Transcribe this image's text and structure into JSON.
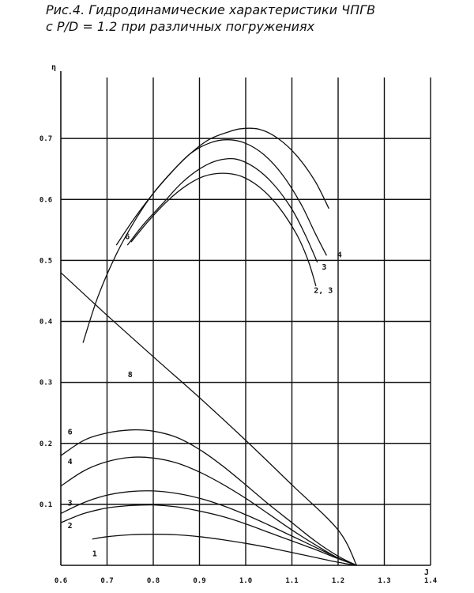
{
  "figure": {
    "caption_line1": "Рис.4. Гидродинамические характеристики ЧПГВ",
    "caption_line2": "с P/D = 1.2 при различных погружениях"
  },
  "chart_data": {
    "type": "line",
    "title": "Рис.4. Гидродинамические характеристики ЧПГВ с P/D = 1.2 при различных погружениях",
    "xlabel": "J",
    "ylabel": "η",
    "xlim": [
      0.6,
      1.4
    ],
    "ylim": [
      0.0,
      0.8
    ],
    "grid": true,
    "x_ticks": [
      "0.6",
      "0.7",
      "0.8",
      "0.9",
      "1.0",
      "1.1",
      "1.2",
      "1.3",
      "1.4"
    ],
    "x_tick_values": [
      0.6,
      0.7,
      0.8,
      0.9,
      1.0,
      1.1,
      1.2,
      1.3,
      1.4
    ],
    "y_ticks": [
      "0.1",
      "0.2",
      "0.3",
      "0.4",
      "0.5",
      "0.6",
      "0.7"
    ],
    "y_tick_values": [
      0.1,
      0.2,
      0.3,
      0.4,
      0.5,
      0.6,
      0.7
    ],
    "series": [
      {
        "name": "6",
        "group": "eta",
        "label_at": [
          0.744,
          0.54
        ],
        "points": [
          [
            0.648,
            0.365
          ],
          [
            0.68,
            0.44
          ],
          [
            0.72,
            0.51
          ],
          [
            0.76,
            0.565
          ],
          [
            0.8,
            0.61
          ],
          [
            0.84,
            0.645
          ],
          [
            0.88,
            0.675
          ],
          [
            0.92,
            0.698
          ],
          [
            0.96,
            0.71
          ],
          [
            0.99,
            0.716
          ],
          [
            1.03,
            0.715
          ],
          [
            1.07,
            0.7
          ],
          [
            1.11,
            0.672
          ],
          [
            1.15,
            0.63
          ],
          [
            1.18,
            0.585
          ]
        ]
      },
      {
        "name": "4",
        "group": "eta",
        "label_at": [
          1.203,
          0.51
        ],
        "points": [
          [
            0.72,
            0.525
          ],
          [
            0.76,
            0.57
          ],
          [
            0.8,
            0.61
          ],
          [
            0.84,
            0.645
          ],
          [
            0.88,
            0.675
          ],
          [
            0.92,
            0.692
          ],
          [
            0.96,
            0.698
          ],
          [
            1.0,
            0.692
          ],
          [
            1.04,
            0.673
          ],
          [
            1.08,
            0.64
          ],
          [
            1.12,
            0.592
          ],
          [
            1.15,
            0.545
          ],
          [
            1.175,
            0.508
          ]
        ]
      },
      {
        "name": "3",
        "group": "eta",
        "label_at": [
          1.17,
          0.49
        ],
        "points": [
          [
            0.744,
            0.525
          ],
          [
            0.78,
            0.56
          ],
          [
            0.82,
            0.593
          ],
          [
            0.86,
            0.626
          ],
          [
            0.9,
            0.65
          ],
          [
            0.94,
            0.664
          ],
          [
            0.98,
            0.666
          ],
          [
            1.02,
            0.652
          ],
          [
            1.06,
            0.625
          ],
          [
            1.1,
            0.584
          ],
          [
            1.13,
            0.54
          ],
          [
            1.155,
            0.497
          ]
        ]
      },
      {
        "name": "2, 3",
        "group": "eta",
        "label_at": [
          1.168,
          0.452
        ],
        "points": [
          [
            0.752,
            0.53
          ],
          [
            0.79,
            0.565
          ],
          [
            0.83,
            0.597
          ],
          [
            0.87,
            0.622
          ],
          [
            0.91,
            0.638
          ],
          [
            0.95,
            0.643
          ],
          [
            0.99,
            0.638
          ],
          [
            1.03,
            0.62
          ],
          [
            1.07,
            0.589
          ],
          [
            1.11,
            0.543
          ],
          [
            1.135,
            0.5
          ],
          [
            1.152,
            0.458
          ]
        ]
      },
      {
        "name": "6",
        "group": "kt",
        "label_at": [
          0.62,
          0.22
        ],
        "points": [
          [
            0.6,
            0.18
          ],
          [
            0.65,
            0.205
          ],
          [
            0.7,
            0.217
          ],
          [
            0.75,
            0.222
          ],
          [
            0.8,
            0.22
          ],
          [
            0.85,
            0.21
          ],
          [
            0.9,
            0.19
          ],
          [
            0.95,
            0.163
          ],
          [
            1.0,
            0.132
          ],
          [
            1.05,
            0.1
          ],
          [
            1.1,
            0.07
          ],
          [
            1.15,
            0.04
          ],
          [
            1.2,
            0.015
          ],
          [
            1.24,
            0.0
          ]
        ]
      },
      {
        "name": "4",
        "group": "kt",
        "label_at": [
          0.62,
          0.171
        ],
        "points": [
          [
            0.6,
            0.13
          ],
          [
            0.65,
            0.155
          ],
          [
            0.7,
            0.17
          ],
          [
            0.75,
            0.177
          ],
          [
            0.8,
            0.176
          ],
          [
            0.85,
            0.168
          ],
          [
            0.9,
            0.153
          ],
          [
            0.95,
            0.133
          ],
          [
            1.0,
            0.11
          ],
          [
            1.05,
            0.084
          ],
          [
            1.1,
            0.058
          ],
          [
            1.15,
            0.034
          ],
          [
            1.2,
            0.012
          ],
          [
            1.24,
            0.0
          ]
        ]
      },
      {
        "name": "3",
        "group": "kt",
        "label_at": [
          0.62,
          0.103
        ],
        "points": [
          [
            0.6,
            0.085
          ],
          [
            0.65,
            0.103
          ],
          [
            0.7,
            0.115
          ],
          [
            0.75,
            0.121
          ],
          [
            0.8,
            0.122
          ],
          [
            0.85,
            0.118
          ],
          [
            0.9,
            0.11
          ],
          [
            0.95,
            0.098
          ],
          [
            1.0,
            0.083
          ],
          [
            1.05,
            0.066
          ],
          [
            1.1,
            0.048
          ],
          [
            1.15,
            0.03
          ],
          [
            1.2,
            0.012
          ],
          [
            1.24,
            0.0
          ]
        ]
      },
      {
        "name": "2",
        "group": "kt",
        "label_at": [
          0.62,
          0.066
        ],
        "points": [
          [
            0.6,
            0.07
          ],
          [
            0.65,
            0.085
          ],
          [
            0.7,
            0.094
          ],
          [
            0.75,
            0.098
          ],
          [
            0.8,
            0.099
          ],
          [
            0.85,
            0.096
          ],
          [
            0.9,
            0.089
          ],
          [
            0.95,
            0.08
          ],
          [
            1.0,
            0.068
          ],
          [
            1.05,
            0.054
          ],
          [
            1.1,
            0.04
          ],
          [
            1.15,
            0.026
          ],
          [
            1.2,
            0.011
          ],
          [
            1.24,
            0.0
          ]
        ]
      },
      {
        "name": "1",
        "group": "kt",
        "label_at": [
          0.673,
          0.02
        ],
        "points": [
          [
            0.668,
            0.043
          ],
          [
            0.7,
            0.047
          ],
          [
            0.75,
            0.05
          ],
          [
            0.8,
            0.051
          ],
          [
            0.85,
            0.05
          ],
          [
            0.9,
            0.047
          ],
          [
            0.95,
            0.042
          ],
          [
            1.0,
            0.036
          ],
          [
            1.05,
            0.029
          ],
          [
            1.1,
            0.021
          ],
          [
            1.15,
            0.013
          ],
          [
            1.2,
            0.005
          ],
          [
            1.24,
            0.0
          ]
        ]
      },
      {
        "name": "8",
        "group": "kq",
        "label_at": [
          0.75,
          0.314
        ],
        "points": [
          [
            0.6,
            0.48
          ],
          [
            0.7,
            0.41
          ],
          [
            0.8,
            0.342
          ],
          [
            0.9,
            0.275
          ],
          [
            1.0,
            0.205
          ],
          [
            1.1,
            0.132
          ],
          [
            1.2,
            0.058
          ],
          [
            1.24,
            0.0
          ]
        ]
      }
    ]
  }
}
